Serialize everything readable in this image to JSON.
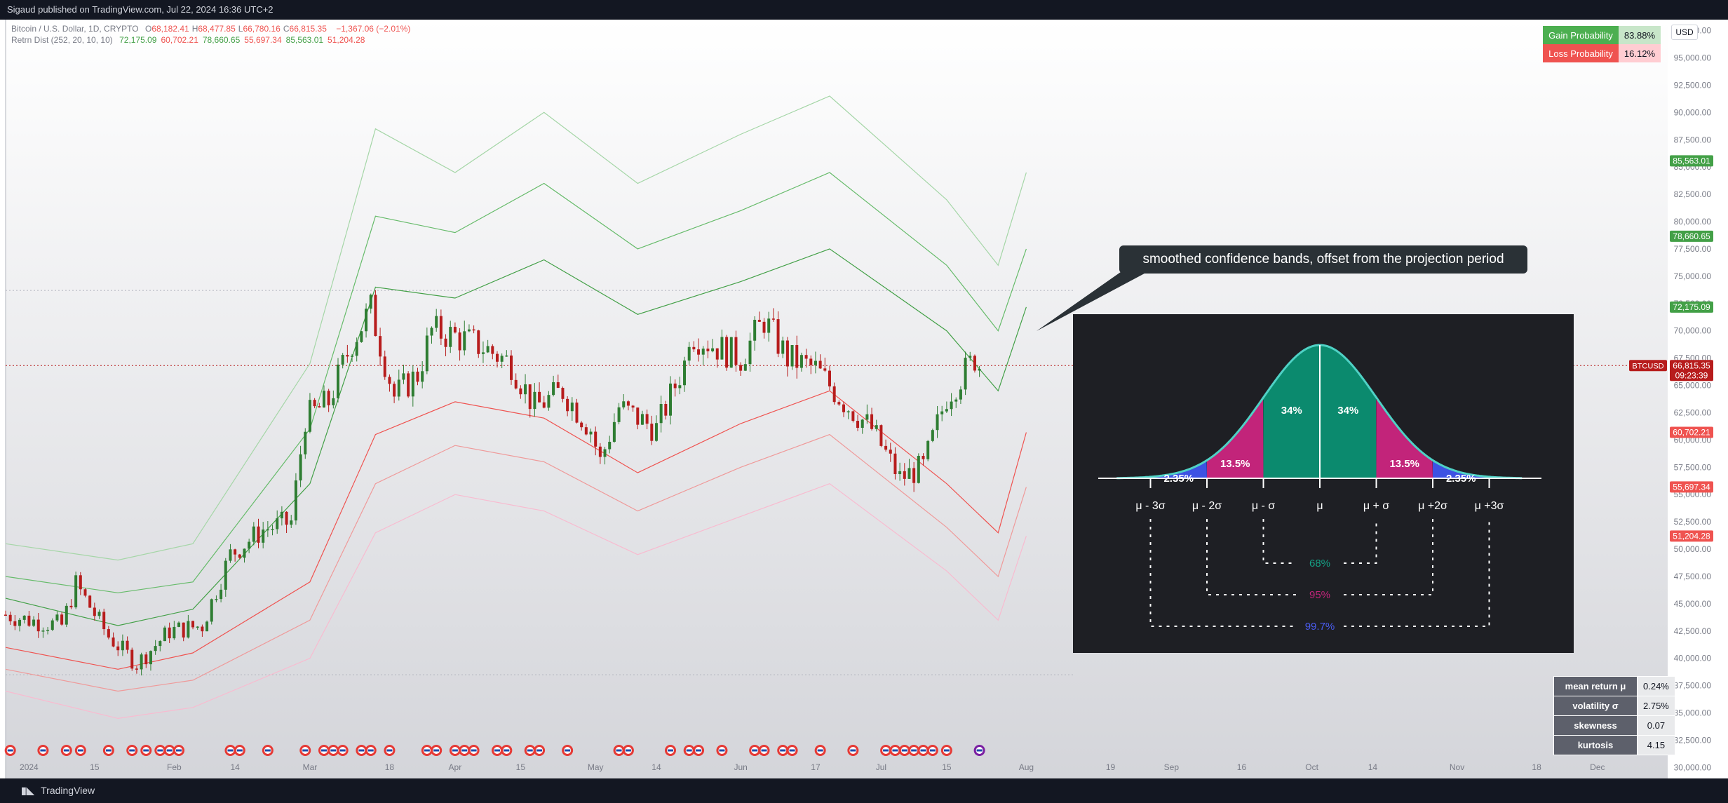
{
  "header": {
    "publish_text": "Sigaud published on TradingView.com, Jul 22, 2024 16:36 UTC+2"
  },
  "legend": {
    "symbol_line": "Bitcoin / U.S. Dollar, 1D, CRYPTO",
    "ohlc": [
      {
        "label": "O",
        "value": "68,182.41"
      },
      {
        "label": "H",
        "value": "68,477.85"
      },
      {
        "label": "L",
        "value": "66,780.16"
      },
      {
        "label": "C",
        "value": "66,815.35"
      }
    ],
    "change": "−1,367.06 (−2.01%)",
    "indicator_name": "Retrn Dist (252, 20, 10, 10)",
    "indicator_values": [
      "72,175.09",
      "60,702.21",
      "78,660.65",
      "55,697.34",
      "85,563.01",
      "51,204.28"
    ]
  },
  "currency": "USD",
  "probabilities": {
    "gain_label": "Gain Probability",
    "gain_value": "83.88%",
    "loss_label": "Loss Probability",
    "loss_value": "16.12%"
  },
  "stats": [
    {
      "label": "mean return μ",
      "value": "0.24%"
    },
    {
      "label": "volatility σ",
      "value": "2.75%"
    },
    {
      "label": "skewness",
      "value": "0.07"
    },
    {
      "label": "kurtosis",
      "value": "4.15"
    }
  ],
  "callout_text": "smoothed confidence bands, offset from the projection period",
  "distribution": {
    "segments": [
      "2.35%",
      "13.5%",
      "34%",
      "34%",
      "13.5%",
      "2.35%"
    ],
    "axis_labels": [
      "μ - 3σ",
      "μ - 2σ",
      "μ - σ",
      "μ",
      "μ + σ",
      "μ +2σ",
      "μ +3σ"
    ],
    "ranges": [
      "68%",
      "95%",
      "99.7%"
    ]
  },
  "price_labels": [
    {
      "value": "85,563.01",
      "color": "#43a047"
    },
    {
      "value": "78,660.65",
      "color": "#43a047"
    },
    {
      "value": "72,175.09",
      "color": "#43a047"
    },
    {
      "value": "66,815.35",
      "sub": "09:23:39",
      "color": "#b71c1c",
      "tag": "BTCUSD"
    },
    {
      "value": "60,702.21",
      "color": "#ef5350"
    },
    {
      "value": "55,697.34",
      "color": "#ef5350"
    },
    {
      "value": "51,204.28",
      "color": "#ef5350"
    }
  ],
  "footer": {
    "brand": "TradingView"
  },
  "chart_data": {
    "type": "candlestick",
    "title": "Bitcoin / U.S. Dollar, 1D, CRYPTO",
    "ylim": [
      29000,
      98500
    ],
    "y_ticks": [
      30000,
      32500,
      35000,
      37500,
      40000,
      42500,
      45000,
      47500,
      50000,
      52500,
      55000,
      57500,
      60000,
      62500,
      65000,
      67500,
      70000,
      72500,
      75000,
      77500,
      80000,
      82500,
      85000,
      87500,
      90000,
      92500,
      95000,
      97500
    ],
    "x_ticks": [
      {
        "label": "2024",
        "date": "2024-01-01"
      },
      {
        "label": "15",
        "date": "2024-01-15"
      },
      {
        "label": "Feb",
        "date": "2024-02-01"
      },
      {
        "label": "14",
        "date": "2024-02-14"
      },
      {
        "label": "Mar",
        "date": "2024-03-01"
      },
      {
        "label": "18",
        "date": "2024-03-18"
      },
      {
        "label": "Apr",
        "date": "2024-04-01"
      },
      {
        "label": "15",
        "date": "2024-04-15"
      },
      {
        "label": "May",
        "date": "2024-05-01"
      },
      {
        "label": "14",
        "date": "2024-05-14"
      },
      {
        "label": "Jun",
        "date": "2024-06-01"
      },
      {
        "label": "17",
        "date": "2024-06-17"
      },
      {
        "label": "Jul",
        "date": "2024-07-01"
      },
      {
        "label": "15",
        "date": "2024-07-15"
      },
      {
        "label": "Aug",
        "date": "2024-08-01"
      },
      {
        "label": "19",
        "date": "2024-08-19"
      },
      {
        "label": "Sep",
        "date": "2024-09-01"
      },
      {
        "label": "16",
        "date": "2024-09-16"
      },
      {
        "label": "Oct",
        "date": "2024-10-01"
      },
      {
        "label": "14",
        "date": "2024-10-14"
      },
      {
        "label": "Nov",
        "date": "2024-11-01"
      },
      {
        "label": "18",
        "date": "2024-11-18"
      },
      {
        "label": "Dec",
        "date": "2024-12-01"
      }
    ],
    "price_path": [
      [
        "2023-12-27",
        44000
      ],
      [
        "2024-01-01",
        43500
      ],
      [
        "2024-01-08",
        43000
      ],
      [
        "2024-01-11",
        46800
      ],
      [
        "2024-01-18",
        42000
      ],
      [
        "2024-01-24",
        39500
      ],
      [
        "2024-01-31",
        42500
      ],
      [
        "2024-02-07",
        43000
      ],
      [
        "2024-02-13",
        49500
      ],
      [
        "2024-02-20",
        51800
      ],
      [
        "2024-02-26",
        52500
      ],
      [
        "2024-02-29",
        62000
      ],
      [
        "2024-03-05",
        63500
      ],
      [
        "2024-03-10",
        69000
      ],
      [
        "2024-03-14",
        72000
      ],
      [
        "2024-03-19",
        64000
      ],
      [
        "2024-03-24",
        66000
      ],
      [
        "2024-03-27",
        70000
      ],
      [
        "2024-04-01",
        69500
      ],
      [
        "2024-04-07",
        68500
      ],
      [
        "2024-04-13",
        67000
      ],
      [
        "2024-04-18",
        63000
      ],
      [
        "2024-04-24",
        64500
      ],
      [
        "2024-04-30",
        61000
      ],
      [
        "2024-05-02",
        58000
      ],
      [
        "2024-05-06",
        63000
      ],
      [
        "2024-05-14",
        61000
      ],
      [
        "2024-05-20",
        67000
      ],
      [
        "2024-05-21",
        69800
      ],
      [
        "2024-05-27",
        68500
      ],
      [
        "2024-06-01",
        67500
      ],
      [
        "2024-06-06",
        71000
      ],
      [
        "2024-06-11",
        67500
      ],
      [
        "2024-06-17",
        66500
      ],
      [
        "2024-06-23",
        63500
      ],
      [
        "2024-06-29",
        61000
      ],
      [
        "2024-07-05",
        56500
      ],
      [
        "2024-07-10",
        57500
      ],
      [
        "2024-07-15",
        64000
      ],
      [
        "2024-07-21",
        67500
      ],
      [
        "2024-07-22",
        66815
      ]
    ],
    "last_ohlc": {
      "open": 68182.41,
      "high": 68477.85,
      "low": 66780.16,
      "close": 66815.35,
      "change": -1367.06,
      "change_pct": -2.01
    },
    "bands": [
      {
        "values": [
          [
            "2023-12-27",
            50500
          ],
          [
            "2024-01-20",
            49000
          ],
          [
            "2024-02-05",
            50500
          ],
          [
            "2024-03-01",
            67000
          ],
          [
            "2024-03-15",
            88500
          ],
          [
            "2024-04-01",
            84500
          ],
          [
            "2024-04-20",
            90000
          ],
          [
            "2024-05-10",
            83500
          ],
          [
            "2024-06-01",
            88000
          ],
          [
            "2024-06-20",
            91500
          ],
          [
            "2024-07-15",
            82000
          ],
          [
            "2024-07-26",
            76000
          ],
          [
            "2024-08-01",
            84500
          ]
        ],
        "color": "#a5d6a7"
      },
      {
        "values": [
          [
            "2023-12-27",
            47500
          ],
          [
            "2024-01-20",
            46000
          ],
          [
            "2024-02-05",
            47000
          ],
          [
            "2024-03-01",
            61000
          ],
          [
            "2024-03-15",
            80500
          ],
          [
            "2024-04-01",
            79000
          ],
          [
            "2024-04-20",
            83500
          ],
          [
            "2024-05-10",
            77500
          ],
          [
            "2024-06-01",
            81000
          ],
          [
            "2024-06-20",
            84500
          ],
          [
            "2024-07-15",
            76000
          ],
          [
            "2024-07-26",
            70000
          ],
          [
            "2024-08-01",
            77500
          ]
        ],
        "color": "#66bb6a"
      },
      {
        "values": [
          [
            "2023-12-27",
            45500
          ],
          [
            "2024-01-20",
            43000
          ],
          [
            "2024-02-05",
            44500
          ],
          [
            "2024-03-01",
            56000
          ],
          [
            "2024-03-15",
            74000
          ],
          [
            "2024-04-01",
            73000
          ],
          [
            "2024-04-20",
            76500
          ],
          [
            "2024-05-10",
            71500
          ],
          [
            "2024-06-01",
            74500
          ],
          [
            "2024-06-20",
            77500
          ],
          [
            "2024-07-15",
            70000
          ],
          [
            "2024-07-26",
            64500
          ],
          [
            "2024-08-01",
            72175
          ]
        ],
        "color": "#43a047"
      },
      {
        "values": [
          [
            "2023-12-27",
            41000
          ],
          [
            "2024-01-20",
            39000
          ],
          [
            "2024-02-05",
            40500
          ],
          [
            "2024-03-01",
            47000
          ],
          [
            "2024-03-15",
            60500
          ],
          [
            "2024-04-01",
            63500
          ],
          [
            "2024-04-20",
            62000
          ],
          [
            "2024-05-10",
            57000
          ],
          [
            "2024-06-01",
            61500
          ],
          [
            "2024-06-20",
            64500
          ],
          [
            "2024-07-15",
            56000
          ],
          [
            "2024-07-26",
            51500
          ],
          [
            "2024-08-01",
            60702
          ]
        ],
        "color": "#ef5350"
      },
      {
        "values": [
          [
            "2023-12-27",
            39000
          ],
          [
            "2024-01-20",
            37000
          ],
          [
            "2024-02-05",
            38000
          ],
          [
            "2024-03-01",
            43500
          ],
          [
            "2024-03-15",
            56000
          ],
          [
            "2024-04-01",
            59500
          ],
          [
            "2024-04-20",
            58000
          ],
          [
            "2024-05-10",
            53500
          ],
          [
            "2024-06-01",
            57500
          ],
          [
            "2024-06-20",
            60500
          ],
          [
            "2024-07-15",
            52000
          ],
          [
            "2024-07-26",
            47500
          ],
          [
            "2024-08-01",
            55697
          ]
        ],
        "color": "#ef9a9a"
      },
      {
        "values": [
          [
            "2023-12-27",
            37000
          ],
          [
            "2024-01-20",
            34500
          ],
          [
            "2024-02-05",
            35500
          ],
          [
            "2024-03-01",
            40000
          ],
          [
            "2024-03-15",
            51500
          ],
          [
            "2024-04-01",
            55000
          ],
          [
            "2024-04-20",
            53500
          ],
          [
            "2024-05-10",
            49500
          ],
          [
            "2024-06-01",
            53000
          ],
          [
            "2024-06-20",
            56000
          ],
          [
            "2024-07-15",
            48000
          ],
          [
            "2024-07-26",
            43500
          ],
          [
            "2024-08-01",
            51204
          ]
        ],
        "color": "#f8bbd0"
      }
    ],
    "reference_levels": [
      73700,
      66815,
      38500
    ]
  }
}
